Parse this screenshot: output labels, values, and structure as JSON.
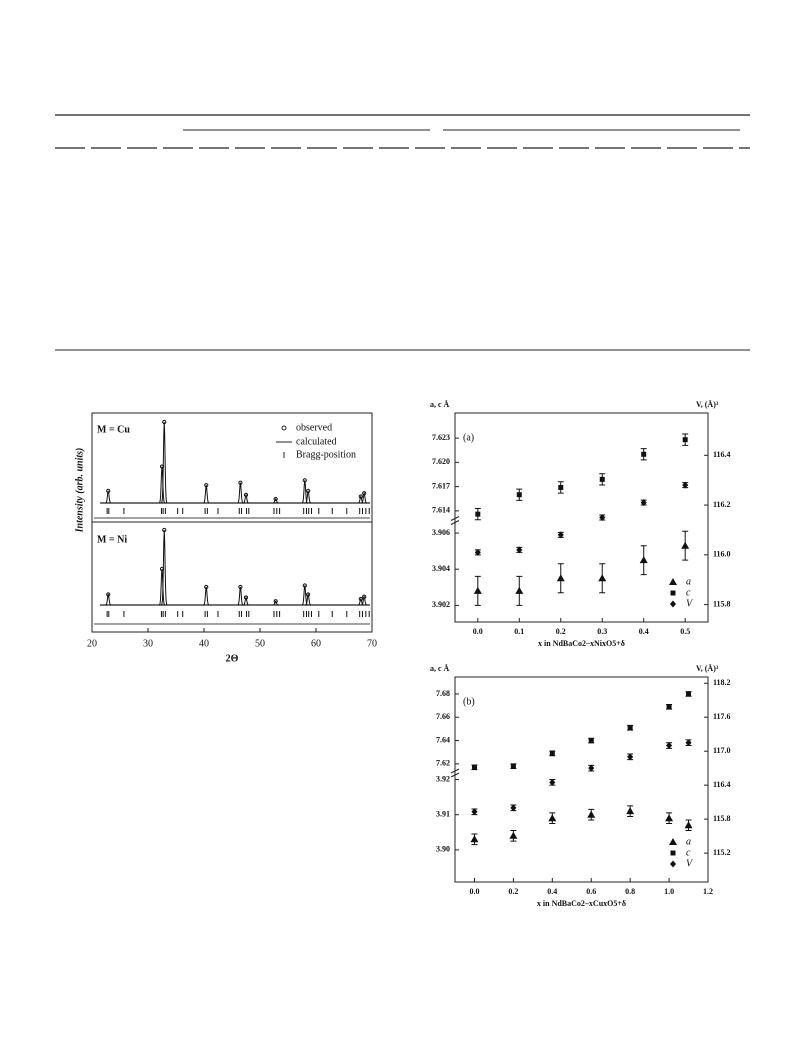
{
  "figures": [
    {
      "type": "xrd",
      "x_label": "2Θ",
      "y_label": "Intensity (arb. units)",
      "xlim": [
        20,
        70
      ],
      "xticks": [
        20,
        30,
        40,
        50,
        60,
        70
      ],
      "legend": [
        "observed",
        "calculated",
        "Bragg-position"
      ],
      "bragg_positions": [
        22.7,
        23.0,
        25.7,
        32.4,
        32.7,
        33.1,
        35.3,
        36.2,
        40.2,
        40.6,
        42.5,
        46.3,
        46.7,
        47.6,
        48.0,
        52.5,
        53.0,
        53.5,
        57.8,
        58.3,
        58.7,
        59.2,
        60.5,
        62.9,
        65.5,
        67.8,
        68.3,
        68.9,
        69.5
      ],
      "panels": [
        {
          "label": "M = Cu",
          "peaks": [
            22.9,
            32.5,
            32.9,
            40.4,
            46.5,
            47.5,
            52.8,
            58.0,
            58.6,
            68.0,
            68.6
          ],
          "heights": [
            15,
            45,
            100,
            22,
            25,
            10,
            5,
            28,
            15,
            8,
            12
          ]
        },
        {
          "label": "M = Ni",
          "peaks": [
            22.9,
            32.5,
            32.9,
            40.4,
            46.5,
            47.5,
            52.8,
            58.0,
            58.6,
            68.0,
            68.6
          ],
          "heights": [
            14,
            48,
            100,
            24,
            24,
            10,
            5,
            26,
            14,
            8,
            11
          ]
        }
      ]
    },
    {
      "type": "lattice",
      "panel_label": "(a)",
      "x_label": "x in NdBaCo2–xNixO5+δ",
      "y_label": "a, c Å",
      "y2_label": "V, (Å)³",
      "x": [
        0.0,
        0.1,
        0.2,
        0.3,
        0.4,
        0.5
      ],
      "xlim": [
        -0.055,
        0.555
      ],
      "xticks": [
        {
          "value": 0,
          "label": "0.0"
        },
        0.1,
        0.2,
        0.3,
        0.4,
        0.5
      ],
      "ylim_upper": [
        7.613,
        7.624
      ],
      "yticks_upper": [
        7.614,
        7.617,
        {
          "value": 7.62,
          "label": "7.620"
        },
        7.623
      ],
      "ylim_lower": [
        3.9013,
        3.9065
      ],
      "yticks_lower": [
        3.902,
        3.904,
        3.906
      ],
      "y2lim": [
        115.73,
        116.57
      ],
      "y2ticks": [
        115.8,
        {
          "value": 116,
          "label": "116.0"
        },
        116.2,
        116.4
      ],
      "series": [
        {
          "name": "a",
          "marker": "triangle",
          "values": [
            3.9028,
            3.9028,
            3.9035,
            3.9035,
            3.9045,
            3.9053
          ],
          "errors": [
            0.0008,
            0.0008,
            0.0008,
            0.0008,
            0.0008,
            0.0008
          ]
        },
        {
          "name": "c",
          "marker": "square",
          "values": [
            7.6136,
            7.616,
            7.6169,
            7.6179,
            7.621,
            7.6228
          ],
          "errors": [
            0.0007,
            0.0007,
            0.0007,
            0.0007,
            0.0007,
            0.0007
          ]
        },
        {
          "name": "V",
          "marker": "diamond",
          "axis": "y2",
          "values": [
            116.01,
            116.02,
            116.08,
            116.15,
            116.21,
            116.28
          ],
          "errors": [
            0.01,
            0.01,
            0.01,
            0.01,
            0.01,
            0.01
          ]
        }
      ]
    },
    {
      "type": "lattice",
      "panel_label": "(b)",
      "x_label": "x in NdBaCo2–xCuxO5+δ",
      "y_label": "a, c Å",
      "y2_label": "V, (Å)³",
      "x": [
        0.0,
        0.2,
        0.4,
        0.6,
        0.8,
        1.0,
        1.1
      ],
      "xlim": [
        -0.1,
        1.2
      ],
      "xticks": [
        {
          "value": 0,
          "label": "0.0"
        },
        0.2,
        0.4,
        0.6,
        0.8,
        {
          "value": 1,
          "label": "1.0"
        },
        1.2
      ],
      "ylim_upper": [
        7.613,
        7.692
      ],
      "yticks_upper": [
        7.62,
        7.64,
        7.66,
        7.68
      ],
      "ylim_lower": [
        3.892,
        3.921
      ],
      "yticks_lower": [
        {
          "value": 3.9,
          "label": "3.90"
        },
        3.91,
        3.92
      ],
      "y2lim": [
        114.69,
        118.31
      ],
      "y2ticks": [
        115.2,
        115.8,
        116.4,
        {
          "value": 117,
          "label": "117.0"
        },
        117.6,
        118.2
      ],
      "series": [
        {
          "name": "a",
          "marker": "triangle",
          "values": [
            3.903,
            3.904,
            3.909,
            3.91,
            3.911,
            3.909,
            3.907
          ],
          "errors": [
            0.0015,
            0.0015,
            0.0015,
            0.0015,
            0.0015,
            0.0015,
            0.0015
          ]
        },
        {
          "name": "c",
          "marker": "square",
          "values": [
            7.617,
            7.618,
            7.629,
            7.64,
            7.651,
            7.669,
            7.68
          ],
          "errors": [
            0.002,
            0.002,
            0.002,
            0.002,
            0.002,
            0.002,
            0.002
          ]
        },
        {
          "name": "V",
          "marker": "diamond",
          "axis": "y2",
          "values": [
            115.93,
            116.0,
            116.45,
            116.7,
            116.9,
            117.1,
            117.15
          ],
          "errors": [
            0.05,
            0.05,
            0.05,
            0.05,
            0.05,
            0.05,
            0.05
          ]
        }
      ]
    }
  ]
}
